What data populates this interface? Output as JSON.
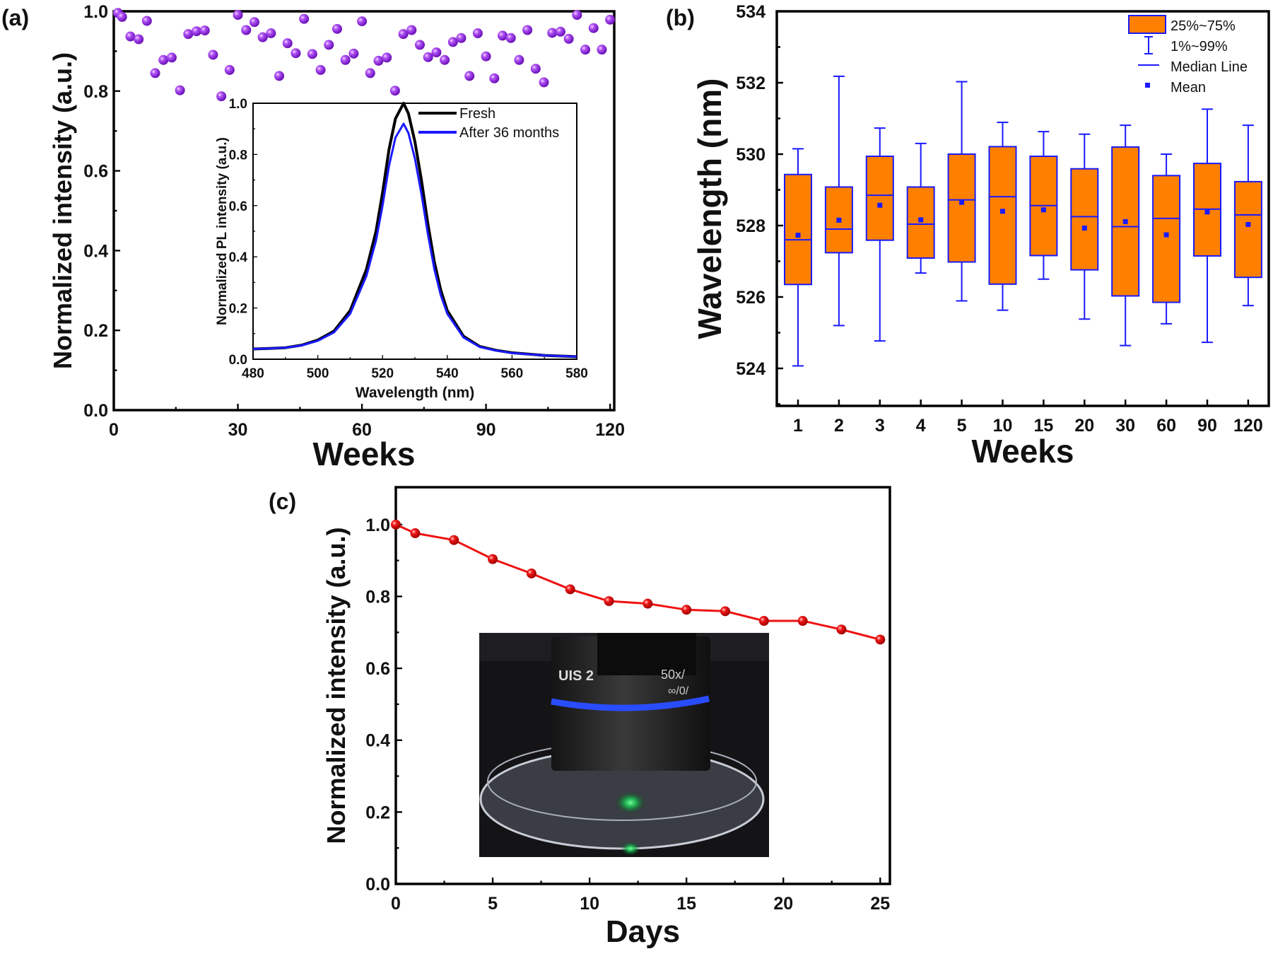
{
  "panels": {
    "a": "(a)",
    "b": "(b)",
    "c": "(c)"
  },
  "chart_data": [
    {
      "id": "a",
      "type": "scatter",
      "xlabel": "Weeks",
      "ylabel": "Normalized intensity (a.u.)",
      "xlim": [
        0,
        121
      ],
      "ylim": [
        0,
        1.0
      ],
      "xticks": [
        0,
        30,
        60,
        90,
        120
      ],
      "yticks": [
        0.0,
        0.2,
        0.4,
        0.6,
        0.8,
        1.0
      ],
      "marker_color": "#9b30e8",
      "x": [
        1,
        2,
        4,
        6,
        8,
        10,
        12,
        14,
        16,
        18,
        20,
        22,
        24,
        26,
        28,
        30,
        32,
        34,
        36,
        38,
        40,
        42,
        44,
        46,
        48,
        50,
        52,
        54,
        56,
        58,
        60,
        62,
        64,
        66,
        68,
        70,
        72,
        74,
        76,
        78,
        80,
        82,
        84,
        86,
        88,
        90,
        92,
        94,
        96,
        98,
        100,
        102,
        104,
        106,
        108,
        110,
        112,
        114,
        116,
        118,
        120
      ],
      "y": [
        0.996,
        0.986,
        0.937,
        0.93,
        0.976,
        0.845,
        0.878,
        0.884,
        0.802,
        0.943,
        0.95,
        0.952,
        0.891,
        0.787,
        0.853,
        0.991,
        0.953,
        0.973,
        0.935,
        0.945,
        0.838,
        0.92,
        0.895,
        0.981,
        0.893,
        0.853,
        0.916,
        0.956,
        0.878,
        0.894,
        0.975,
        0.845,
        0.876,
        0.884,
        0.801,
        0.943,
        0.953,
        0.916,
        0.885,
        0.897,
        0.878,
        0.923,
        0.933,
        0.838,
        0.945,
        0.887,
        0.832,
        0.939,
        0.933,
        0.878,
        0.953,
        0.856,
        0.822,
        0.946,
        0.949,
        0.931,
        0.991,
        0.904,
        0.958,
        0.904,
        0.979
      ]
    },
    {
      "id": "a-inset",
      "type": "line",
      "xlabel": "Wavelength (nm)",
      "ylabel": "Normalized PL intensity (a.u.)",
      "xlim": [
        480,
        580
      ],
      "ylim": [
        0,
        1.0
      ],
      "xticks": [
        480,
        500,
        520,
        540,
        560,
        580
      ],
      "yticks": [
        0.0,
        0.2,
        0.4,
        0.6,
        0.8,
        1.0
      ],
      "legend_position": "top-right",
      "x": [
        480,
        485,
        490,
        495,
        500,
        505,
        510,
        515,
        518,
        520,
        522,
        524,
        526.5,
        528,
        530,
        532,
        534,
        536,
        538,
        540,
        545,
        550,
        555,
        560,
        570,
        580
      ],
      "series": [
        {
          "name": "Fresh",
          "color": "#000000",
          "values": [
            0.04,
            0.042,
            0.045,
            0.055,
            0.075,
            0.11,
            0.19,
            0.35,
            0.5,
            0.65,
            0.82,
            0.94,
            1.0,
            0.96,
            0.85,
            0.7,
            0.53,
            0.38,
            0.27,
            0.19,
            0.09,
            0.05,
            0.035,
            0.025,
            0.015,
            0.01
          ]
        },
        {
          "name": "After 36 months",
          "color": "#1a1aff",
          "values": [
            0.04,
            0.042,
            0.045,
            0.054,
            0.072,
            0.105,
            0.178,
            0.325,
            0.464,
            0.6,
            0.756,
            0.866,
            0.92,
            0.884,
            0.784,
            0.646,
            0.49,
            0.352,
            0.25,
            0.178,
            0.085,
            0.048,
            0.034,
            0.024,
            0.015,
            0.01
          ]
        }
      ]
    },
    {
      "id": "b",
      "type": "box",
      "xlabel": "Weeks",
      "ylabel": "Wavelength (nm)",
      "ylim": [
        522.95,
        534
      ],
      "yticks": [
        524,
        526,
        528,
        530,
        532,
        534
      ],
      "box_color": "#ff8000",
      "line_color": "#1a1aff",
      "legend_position": "top-right",
      "legend": [
        "25%~75%",
        "1%~99%",
        "Median Line",
        "Mean"
      ],
      "categories": [
        "1",
        "2",
        "3",
        "4",
        "5",
        "10",
        "15",
        "20",
        "30",
        "60",
        "90",
        "120"
      ],
      "whisker_low": [
        524.07,
        525.2,
        524.77,
        526.67,
        525.89,
        525.63,
        526.5,
        525.38,
        524.64,
        525.25,
        524.73,
        525.76
      ],
      "q1": [
        526.35,
        527.24,
        527.59,
        527.09,
        526.98,
        526.36,
        527.16,
        526.76,
        526.03,
        525.85,
        527.15,
        526.55
      ],
      "median": [
        527.6,
        527.9,
        528.85,
        528.04,
        528.72,
        528.81,
        528.56,
        528.25,
        527.97,
        528.2,
        528.46,
        528.3
      ],
      "mean": [
        527.73,
        528.15,
        528.57,
        528.16,
        528.65,
        528.4,
        528.44,
        527.93,
        528.11,
        527.74,
        528.38,
        528.03
      ],
      "q3": [
        529.43,
        529.08,
        529.94,
        529.08,
        530.0,
        530.21,
        529.94,
        529.59,
        530.2,
        529.4,
        529.74,
        529.23
      ],
      "whisker_high": [
        530.15,
        532.18,
        530.73,
        530.3,
        532.03,
        530.89,
        530.63,
        530.56,
        530.81,
        530.0,
        531.26,
        530.81
      ]
    },
    {
      "id": "c",
      "type": "line",
      "xlabel": "Days",
      "ylabel": "Normalized intensity (a.u.)",
      "xlim": [
        0,
        25.5
      ],
      "ylim": [
        0,
        1.104
      ],
      "xticks": [
        0,
        5,
        10,
        15,
        20,
        25
      ],
      "yticks": [
        0.0,
        0.2,
        0.4,
        0.6,
        0.8,
        1.0
      ],
      "marker_color": "#ee1111",
      "x": [
        0,
        1,
        3,
        5,
        7,
        9,
        11,
        13,
        15,
        17,
        19,
        21,
        23,
        25
      ],
      "y": [
        1.0,
        0.976,
        0.957,
        0.904,
        0.864,
        0.82,
        0.787,
        0.78,
        0.763,
        0.759,
        0.732,
        0.732,
        0.708,
        0.68
      ]
    }
  ],
  "photo": {
    "lens_text": "UIS 2",
    "lens_text2": "50x/",
    "lens_text3": "∞/0/"
  }
}
